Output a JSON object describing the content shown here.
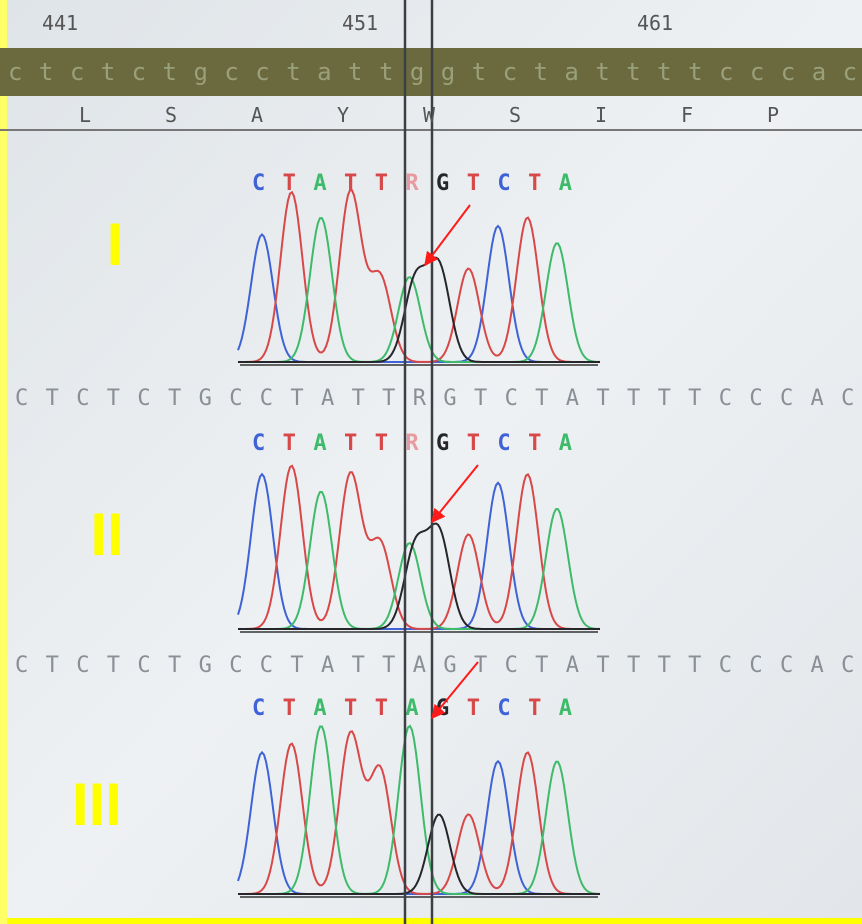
{
  "ruler": [
    "441",
    "451",
    "461"
  ],
  "reference_sequence": "ctctctgcctattggtctattttcccacc",
  "amino_acids": [
    "L",
    "S",
    "A",
    "Y",
    "W",
    "S",
    "I",
    "F",
    "P"
  ],
  "panels": [
    {
      "label": "I",
      "trace_bases": "CTATTRGTCTA"
    },
    {
      "label": "II",
      "consensus": "CTCTCTGCCTATTRGTCTATTTTCCCACC",
      "trace_bases": "CTATTRGTCTA"
    },
    {
      "label": "III",
      "consensus": "CTCTCTGCCTATTAGTCTATTTTCCCACC",
      "trace_bases": "CTATTAGTCTA"
    }
  ]
}
